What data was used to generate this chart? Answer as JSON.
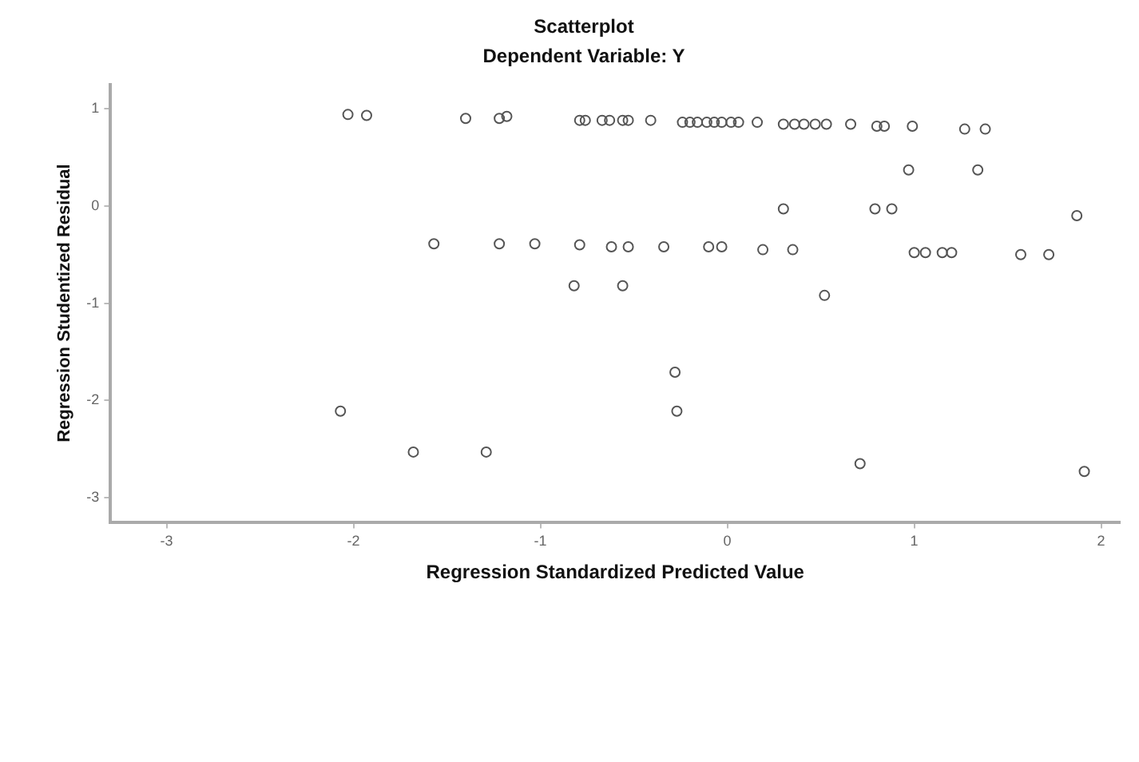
{
  "chart_data": {
    "type": "scatter",
    "title": "Scatterplot",
    "subtitle": "Dependent Variable: Y",
    "xlabel": "Regression Standardized Predicted Value",
    "ylabel": "Regression Studentized Residual",
    "xlim": [
      -3.3,
      2.1
    ],
    "ylim": [
      -3.25,
      1.25
    ],
    "xticks": [
      -3,
      -2,
      -1,
      0,
      1,
      2
    ],
    "yticks": [
      -3,
      -2,
      -1,
      0,
      1
    ],
    "grid": false,
    "legend": false,
    "marker": "circle",
    "series": [
      {
        "color": "#555555",
        "x": [
          -2.03,
          -1.93,
          -1.4,
          -1.22,
          -1.18,
          -0.79,
          -0.76,
          -0.67,
          -0.63,
          -0.56,
          -0.53,
          -0.41,
          -0.24,
          -0.2,
          -0.16,
          -0.11,
          -0.07,
          -0.03,
          0.02,
          0.06,
          0.16,
          0.3,
          0.36,
          0.41,
          0.47,
          0.53,
          0.66,
          0.8,
          0.84,
          0.99,
          1.27,
          1.38,
          0.97,
          1.34,
          0.3,
          0.79,
          0.88,
          1.87,
          -1.57,
          -1.22,
          -1.03,
          -0.79,
          -0.62,
          -0.53,
          -0.34,
          -0.1,
          -0.03,
          0.19,
          0.35,
          1.0,
          1.06,
          1.15,
          1.2,
          1.57,
          1.72,
          -0.82,
          -0.56,
          0.52,
          -0.28,
          -0.27,
          0.71,
          1.91,
          -2.07,
          -1.68,
          -1.29
        ],
        "values": [
          0.94,
          0.93,
          0.9,
          0.9,
          0.92,
          0.88,
          0.88,
          0.88,
          0.88,
          0.88,
          0.88,
          0.88,
          0.86,
          0.86,
          0.86,
          0.86,
          0.86,
          0.86,
          0.86,
          0.86,
          0.86,
          0.84,
          0.84,
          0.84,
          0.84,
          0.84,
          0.84,
          0.82,
          0.82,
          0.82,
          0.79,
          0.79,
          0.37,
          0.37,
          -0.03,
          -0.03,
          -0.03,
          -0.1,
          -0.39,
          -0.39,
          -0.39,
          -0.4,
          -0.42,
          -0.42,
          -0.42,
          -0.42,
          -0.42,
          -0.45,
          -0.45,
          -0.48,
          -0.48,
          -0.48,
          -0.48,
          -0.5,
          -0.5,
          -0.82,
          -0.82,
          -0.92,
          -1.71,
          -2.11,
          -2.65,
          -2.73,
          -2.11,
          -2.53,
          -2.53
        ]
      }
    ]
  }
}
